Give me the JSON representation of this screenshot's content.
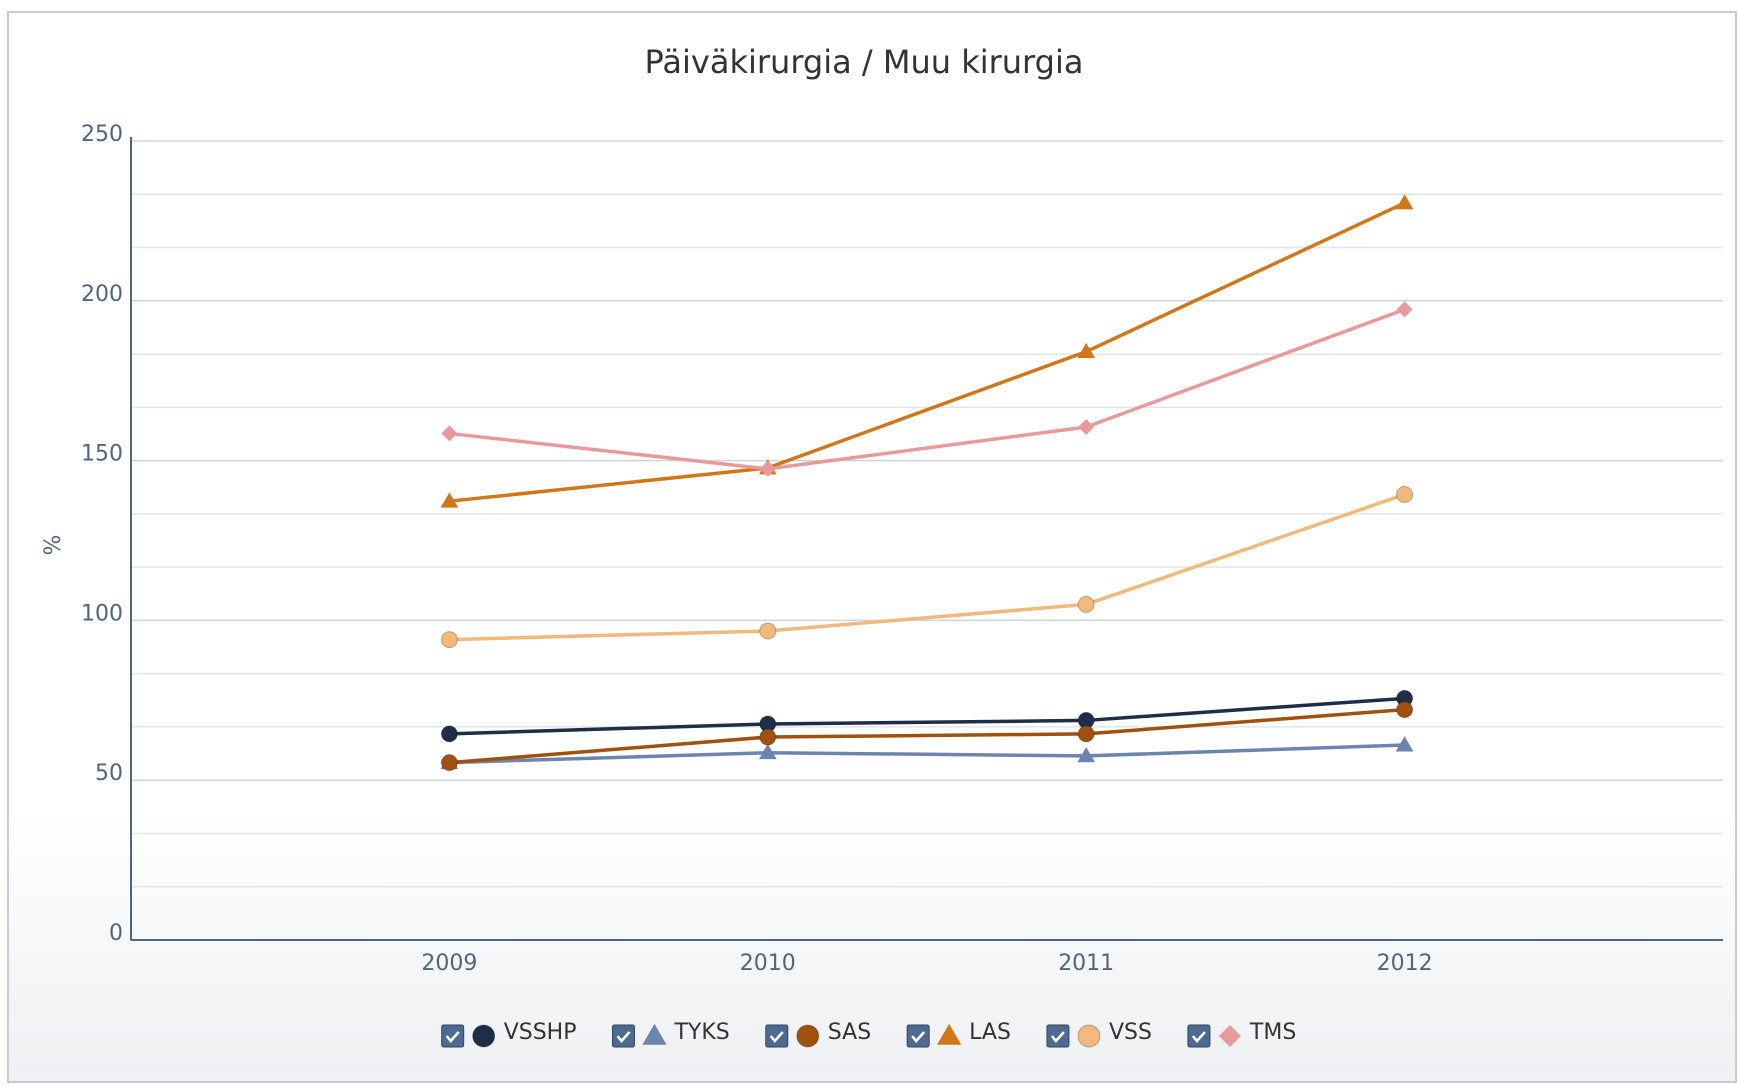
{
  "chart_data": {
    "type": "line",
    "title": "Päiväkirurgia / Muu kirurgia",
    "y_label": "%",
    "categories": [
      "2009",
      "2010",
      "2011",
      "2012"
    ],
    "series": [
      {
        "name": "VSSHP",
        "color": "#1e2d48",
        "marker": "circle",
        "values": [
          64.5,
          67.6,
          68.7,
          75.6
        ]
      },
      {
        "name": "TYKS",
        "color": "#6c84b0",
        "marker": "triangle",
        "values": [
          55.5,
          58.6,
          57.6,
          61.0
        ]
      },
      {
        "name": "SAS",
        "color": "#a0500f",
        "marker": "circle",
        "values": [
          55.5,
          63.5,
          64.5,
          72.1
        ]
      },
      {
        "name": "LAS",
        "color": "#d0771a",
        "marker": "triangle",
        "values": [
          137.3,
          147.7,
          184.1,
          230.6
        ]
      },
      {
        "name": "VSS",
        "color": "#f2b87c",
        "marker": "circle",
        "values": [
          94.0,
          96.7,
          105.0,
          139.4
        ]
      },
      {
        "name": "TMS",
        "color": "#e8999b",
        "marker": "diamond",
        "values": [
          158.5,
          147.4,
          160.5,
          197.3
        ]
      }
    ],
    "ylim": [
      0,
      250
    ],
    "yticks": [
      0,
      50,
      100,
      150,
      200,
      250
    ],
    "grid": true,
    "minor_grid_divisions": 3,
    "legend": "bottom"
  }
}
